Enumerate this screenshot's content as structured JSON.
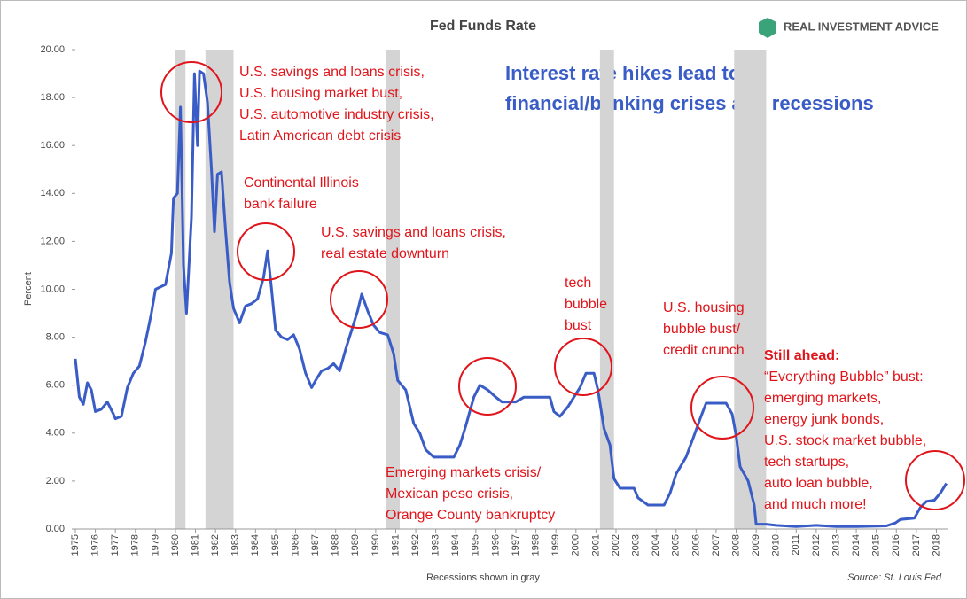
{
  "chart_data": {
    "type": "line",
    "title": "Fed Funds Rate",
    "brand": "REAL INVESTMENT ADVICE",
    "headline": [
      "Interest rate hikes lead to",
      "financial/banking crises and recessions"
    ],
    "y_label": "Percent",
    "x_label": "Recessions shown in gray",
    "source": "Source: St. Louis Fed",
    "color": "#3a5cc6",
    "recession_color": "#d4d4d4",
    "grid": false,
    "xlim": [
      1975,
      2018.6
    ],
    "xticks": [
      1975,
      1976,
      1977,
      1978,
      1979,
      1980,
      1981,
      1982,
      1983,
      1984,
      1985,
      1986,
      1987,
      1988,
      1989,
      1990,
      1991,
      1992,
      1993,
      1994,
      1995,
      1996,
      1997,
      1998,
      1999,
      2000,
      2001,
      2002,
      2003,
      2004,
      2005,
      2006,
      2007,
      2008,
      2009,
      2010,
      2011,
      2012,
      2013,
      2014,
      2015,
      2016,
      2017,
      2018
    ],
    "ylim": [
      0,
      20
    ],
    "yticks": [
      {
        "value": 0,
        "label": "0.00"
      },
      {
        "value": 2,
        "label": "2.00"
      },
      {
        "value": 4,
        "label": "4.00"
      },
      {
        "value": 6,
        "label": "6.00"
      },
      {
        "value": 8,
        "label": "8.00"
      },
      {
        "value": 10,
        "label": "10.00"
      },
      {
        "value": 12,
        "label": "12.00"
      },
      {
        "value": 14,
        "label": "14.00"
      },
      {
        "value": 16,
        "label": "16.00"
      },
      {
        "value": 18,
        "label": "18.00"
      },
      {
        "value": 20,
        "label": "20.00"
      }
    ],
    "recessions": [
      [
        1980.0,
        1980.5
      ],
      [
        1981.5,
        1982.9
      ],
      [
        1990.5,
        1991.2
      ],
      [
        2001.2,
        2001.9
      ],
      [
        2007.9,
        2009.5
      ]
    ],
    "x": [
      1975.0,
      1975.2,
      1975.4,
      1975.6,
      1975.8,
      1976.0,
      1976.3,
      1976.6,
      1976.9,
      1977.0,
      1977.3,
      1977.6,
      1977.9,
      1978.2,
      1978.5,
      1978.8,
      1979.0,
      1979.5,
      1979.8,
      1979.9,
      1980.1,
      1980.25,
      1980.4,
      1980.55,
      1980.8,
      1980.95,
      1981.1,
      1981.2,
      1981.4,
      1981.6,
      1981.8,
      1981.95,
      1982.1,
      1982.3,
      1982.5,
      1982.7,
      1982.9,
      1983.2,
      1983.5,
      1983.8,
      1984.1,
      1984.4,
      1984.6,
      1984.8,
      1985.0,
      1985.3,
      1985.6,
      1985.9,
      1986.2,
      1986.5,
      1986.8,
      1987.0,
      1987.3,
      1987.6,
      1987.9,
      1988.2,
      1988.5,
      1988.8,
      1989.1,
      1989.3,
      1989.6,
      1989.9,
      1990.2,
      1990.6,
      1990.9,
      1991.1,
      1991.5,
      1991.9,
      1992.2,
      1992.5,
      1992.9,
      1993.5,
      1993.9,
      1994.2,
      1994.5,
      1994.9,
      1995.2,
      1995.6,
      1996.0,
      1996.3,
      1996.7,
      1997.0,
      1997.4,
      1997.8,
      1998.3,
      1998.7,
      1998.9,
      1999.2,
      1999.6,
      1999.9,
      2000.2,
      2000.5,
      2000.9,
      2001.1,
      2001.4,
      2001.7,
      2001.9,
      2002.2,
      2002.9,
      2003.1,
      2003.6,
      2004.4,
      2004.7,
      2005.0,
      2005.5,
      2005.9,
      2006.2,
      2006.5,
      2007.5,
      2007.8,
      2008.0,
      2008.2,
      2008.6,
      2008.9,
      2009.0,
      2009.5,
      2010.0,
      2011.0,
      2012.0,
      2013.0,
      2014.0,
      2015.5,
      2015.95,
      2016.2,
      2016.9,
      2017.2,
      2017.5,
      2017.9,
      2018.2,
      2018.5
    ],
    "values": [
      7.1,
      5.5,
      5.2,
      6.1,
      5.8,
      4.9,
      5.0,
      5.3,
      4.8,
      4.6,
      4.7,
      5.9,
      6.5,
      6.8,
      7.8,
      9.0,
      10.0,
      10.2,
      11.5,
      13.8,
      14.0,
      17.6,
      11.0,
      9.0,
      13.0,
      19.0,
      16.0,
      19.1,
      19.0,
      17.8,
      15.0,
      12.4,
      14.8,
      14.9,
      12.5,
      10.3,
      9.2,
      8.6,
      9.3,
      9.4,
      9.6,
      10.5,
      11.6,
      10.0,
      8.3,
      8.0,
      7.9,
      8.1,
      7.5,
      6.5,
      5.9,
      6.2,
      6.6,
      6.7,
      6.9,
      6.6,
      7.5,
      8.3,
      9.1,
      9.8,
      9.1,
      8.5,
      8.2,
      8.1,
      7.3,
      6.2,
      5.8,
      4.4,
      4.0,
      3.3,
      3.0,
      3.0,
      3.0,
      3.5,
      4.3,
      5.5,
      6.0,
      5.8,
      5.5,
      5.3,
      5.3,
      5.3,
      5.5,
      5.5,
      5.5,
      5.5,
      4.9,
      4.7,
      5.1,
      5.5,
      5.9,
      6.5,
      6.5,
      5.8,
      4.2,
      3.5,
      2.1,
      1.7,
      1.7,
      1.3,
      1.0,
      1.0,
      1.5,
      2.3,
      3.0,
      3.9,
      4.6,
      5.25,
      5.25,
      4.8,
      3.9,
      2.6,
      2.0,
      1.0,
      0.2,
      0.2,
      0.15,
      0.1,
      0.15,
      0.1,
      0.1,
      0.13,
      0.25,
      0.4,
      0.45,
      0.9,
      1.15,
      1.2,
      1.5,
      1.9
    ],
    "annotations": [
      {
        "lines": [
          "U.S. savings and loans crisis,",
          "U.S. housing market bust,",
          "U.S. automotive industry crisis,",
          "Latin American debt crisis"
        ]
      },
      {
        "lines": [
          "Continental Illinois",
          "bank failure"
        ]
      },
      {
        "lines": [
          "U.S. savings and loans crisis,",
          "real estate downturn"
        ]
      },
      {
        "lines": [
          "Emerging markets crisis/",
          "Mexican peso crisis,",
          "Orange County bankruptcy"
        ]
      },
      {
        "lines": [
          "tech",
          "bubble",
          "bust"
        ]
      },
      {
        "lines": [
          "U.S. housing",
          "bubble bust/",
          "credit crunch"
        ]
      },
      {
        "title": "Still ahead:",
        "lines": [
          "“Everything Bubble” bust:",
          "emerging markets,",
          "energy junk bonds,",
          "U.S. stock market bubble,",
          "tech startups,",
          "auto loan bubble,",
          "and much more!"
        ]
      }
    ]
  }
}
